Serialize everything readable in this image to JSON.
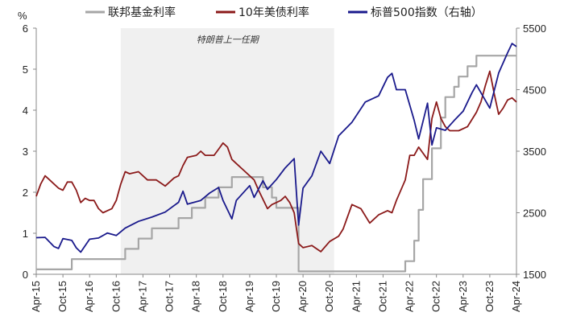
{
  "chart_data": {
    "type": "line",
    "legend_position": "top",
    "grid": false,
    "y_left_unit": "%",
    "y_left_range": [
      0,
      6
    ],
    "y_left_ticks": [
      0,
      1,
      2,
      3,
      4,
      5,
      6
    ],
    "y_right_range": [
      1500,
      5500
    ],
    "y_right_ticks": [
      1500,
      2500,
      3500,
      4500,
      5500
    ],
    "x_range": [
      "2015-04",
      "2024-04"
    ],
    "x_ticks": [
      "Apr-15",
      "Oct-15",
      "Apr-16",
      "Oct-16",
      "Apr-17",
      "Oct-17",
      "Apr-18",
      "Oct-18",
      "Apr-19",
      "Oct-19",
      "Apr-20",
      "Oct-20",
      "Apr-21",
      "Oct-21",
      "Apr-22",
      "Oct-22",
      "Apr-23",
      "Oct-23",
      "Apr-24"
    ],
    "shaded_period": {
      "label": "特朗普上一任期",
      "start": "2016-11",
      "end": "2020-11",
      "color": "#f0f0f0"
    },
    "series": [
      {
        "name": "联邦基金利率",
        "axis": "left",
        "color": "#a6a6a6",
        "points": [
          [
            "2015-04",
            0.12
          ],
          [
            "2015-12",
            0.12
          ],
          [
            "2015-12",
            0.37
          ],
          [
            "2016-12",
            0.37
          ],
          [
            "2016-12",
            0.62
          ],
          [
            "2017-03",
            0.62
          ],
          [
            "2017-03",
            0.87
          ],
          [
            "2017-06",
            0.87
          ],
          [
            "2017-06",
            1.12
          ],
          [
            "2017-12",
            1.12
          ],
          [
            "2017-12",
            1.37
          ],
          [
            "2018-03",
            1.37
          ],
          [
            "2018-03",
            1.62
          ],
          [
            "2018-06",
            1.62
          ],
          [
            "2018-06",
            1.87
          ],
          [
            "2018-09",
            1.87
          ],
          [
            "2018-09",
            2.12
          ],
          [
            "2018-12",
            2.12
          ],
          [
            "2018-12",
            2.37
          ],
          [
            "2019-07",
            2.37
          ],
          [
            "2019-07",
            2.12
          ],
          [
            "2019-09",
            2.12
          ],
          [
            "2019-09",
            1.87
          ],
          [
            "2019-10",
            1.87
          ],
          [
            "2019-10",
            1.62
          ],
          [
            "2020-03",
            1.62
          ],
          [
            "2020-03",
            0.07
          ],
          [
            "2022-03",
            0.07
          ],
          [
            "2022-03",
            0.32
          ],
          [
            "2022-05",
            0.32
          ],
          [
            "2022-05",
            0.82
          ],
          [
            "2022-06",
            0.82
          ],
          [
            "2022-06",
            1.57
          ],
          [
            "2022-07",
            1.57
          ],
          [
            "2022-07",
            2.32
          ],
          [
            "2022-09",
            2.32
          ],
          [
            "2022-09",
            3.07
          ],
          [
            "2022-11",
            3.07
          ],
          [
            "2022-11",
            3.82
          ],
          [
            "2022-12",
            3.82
          ],
          [
            "2022-12",
            4.32
          ],
          [
            "2023-02",
            4.32
          ],
          [
            "2023-02",
            4.57
          ],
          [
            "2023-03",
            4.57
          ],
          [
            "2023-03",
            4.82
          ],
          [
            "2023-05",
            4.82
          ],
          [
            "2023-05",
            5.07
          ],
          [
            "2023-07",
            5.07
          ],
          [
            "2023-07",
            5.33
          ],
          [
            "2024-04",
            5.33
          ]
        ]
      },
      {
        "name": "10年美债利率",
        "axis": "left",
        "color": "#8b1a1a",
        "points": [
          [
            "2015-04",
            1.9
          ],
          [
            "2015-05",
            2.2
          ],
          [
            "2015-06",
            2.4
          ],
          [
            "2015-07",
            2.3
          ],
          [
            "2015-08",
            2.2
          ],
          [
            "2015-09",
            2.1
          ],
          [
            "2015-10",
            2.05
          ],
          [
            "2015-11",
            2.25
          ],
          [
            "2015-12",
            2.25
          ],
          [
            "2016-01",
            2.05
          ],
          [
            "2016-02",
            1.75
          ],
          [
            "2016-03",
            1.85
          ],
          [
            "2016-04",
            1.8
          ],
          [
            "2016-05",
            1.8
          ],
          [
            "2016-06",
            1.6
          ],
          [
            "2016-07",
            1.5
          ],
          [
            "2016-08",
            1.55
          ],
          [
            "2016-09",
            1.6
          ],
          [
            "2016-10",
            1.8
          ],
          [
            "2016-11",
            2.2
          ],
          [
            "2016-12",
            2.5
          ],
          [
            "2017-01",
            2.45
          ],
          [
            "2017-03",
            2.5
          ],
          [
            "2017-05",
            2.3
          ],
          [
            "2017-07",
            2.3
          ],
          [
            "2017-09",
            2.15
          ],
          [
            "2017-11",
            2.35
          ],
          [
            "2017-12",
            2.4
          ],
          [
            "2018-01",
            2.65
          ],
          [
            "2018-02",
            2.85
          ],
          [
            "2018-04",
            2.9
          ],
          [
            "2018-05",
            3.0
          ],
          [
            "2018-06",
            2.9
          ],
          [
            "2018-08",
            2.9
          ],
          [
            "2018-09",
            3.05
          ],
          [
            "2018-10",
            3.2
          ],
          [
            "2018-11",
            3.1
          ],
          [
            "2018-12",
            2.8
          ],
          [
            "2019-01",
            2.7
          ],
          [
            "2019-03",
            2.5
          ],
          [
            "2019-05",
            2.3
          ],
          [
            "2019-06",
            2.05
          ],
          [
            "2019-08",
            1.6
          ],
          [
            "2019-09",
            1.7
          ],
          [
            "2019-10",
            1.75
          ],
          [
            "2019-11",
            1.8
          ],
          [
            "2019-12",
            1.9
          ],
          [
            "2020-01",
            1.75
          ],
          [
            "2020-02",
            1.5
          ],
          [
            "2020-03",
            0.75
          ],
          [
            "2020-04",
            0.65
          ],
          [
            "2020-06",
            0.7
          ],
          [
            "2020-08",
            0.55
          ],
          [
            "2020-10",
            0.8
          ],
          [
            "2020-12",
            0.93
          ],
          [
            "2021-01",
            1.1
          ],
          [
            "2021-02",
            1.4
          ],
          [
            "2021-03",
            1.7
          ],
          [
            "2021-05",
            1.6
          ],
          [
            "2021-07",
            1.25
          ],
          [
            "2021-09",
            1.45
          ],
          [
            "2021-11",
            1.55
          ],
          [
            "2021-12",
            1.5
          ],
          [
            "2022-01",
            1.8
          ],
          [
            "2022-03",
            2.3
          ],
          [
            "2022-04",
            2.9
          ],
          [
            "2022-05",
            2.9
          ],
          [
            "2022-06",
            3.1
          ],
          [
            "2022-08",
            2.8
          ],
          [
            "2022-09",
            3.8
          ],
          [
            "2022-10",
            4.2
          ],
          [
            "2022-11",
            3.8
          ],
          [
            "2022-12",
            3.6
          ],
          [
            "2023-01",
            3.5
          ],
          [
            "2023-03",
            3.5
          ],
          [
            "2023-05",
            3.6
          ],
          [
            "2023-07",
            3.95
          ],
          [
            "2023-08",
            4.2
          ],
          [
            "2023-09",
            4.6
          ],
          [
            "2023-10",
            4.95
          ],
          [
            "2023-11",
            4.4
          ],
          [
            "2023-12",
            3.9
          ],
          [
            "2024-01",
            4.05
          ],
          [
            "2024-02",
            4.25
          ],
          [
            "2024-03",
            4.3
          ],
          [
            "2024-04",
            4.2
          ]
        ]
      },
      {
        "name": "标普500指数（右轴）",
        "axis": "right",
        "color": "#1a1a8c",
        "points": [
          [
            "2015-04",
            2095
          ],
          [
            "2015-06",
            2100
          ],
          [
            "2015-08",
            1950
          ],
          [
            "2015-09",
            1920
          ],
          [
            "2015-10",
            2080
          ],
          [
            "2015-12",
            2050
          ],
          [
            "2016-01",
            1930
          ],
          [
            "2016-02",
            1860
          ],
          [
            "2016-04",
            2070
          ],
          [
            "2016-06",
            2090
          ],
          [
            "2016-08",
            2170
          ],
          [
            "2016-10",
            2130
          ],
          [
            "2016-12",
            2250
          ],
          [
            "2017-03",
            2360
          ],
          [
            "2017-06",
            2430
          ],
          [
            "2017-09",
            2510
          ],
          [
            "2017-12",
            2670
          ],
          [
            "2018-01",
            2850
          ],
          [
            "2018-02",
            2640
          ],
          [
            "2018-05",
            2700
          ],
          [
            "2018-07",
            2820
          ],
          [
            "2018-09",
            2910
          ],
          [
            "2018-10",
            2700
          ],
          [
            "2018-12",
            2400
          ],
          [
            "2019-01",
            2700
          ],
          [
            "2019-04",
            2940
          ],
          [
            "2019-05",
            2750
          ],
          [
            "2019-07",
            3020
          ],
          [
            "2019-08",
            2880
          ],
          [
            "2019-10",
            3040
          ],
          [
            "2019-12",
            3230
          ],
          [
            "2020-02",
            3380
          ],
          [
            "2020-03",
            2300
          ],
          [
            "2020-04",
            2900
          ],
          [
            "2020-06",
            3100
          ],
          [
            "2020-08",
            3500
          ],
          [
            "2020-10",
            3300
          ],
          [
            "2020-12",
            3750
          ],
          [
            "2021-03",
            3970
          ],
          [
            "2021-06",
            4300
          ],
          [
            "2021-09",
            4400
          ],
          [
            "2021-11",
            4700
          ],
          [
            "2021-12",
            4766
          ],
          [
            "2022-01",
            4500
          ],
          [
            "2022-03",
            4500
          ],
          [
            "2022-05",
            4000
          ],
          [
            "2022-06",
            3700
          ],
          [
            "2022-08",
            4280
          ],
          [
            "2022-09",
            3600
          ],
          [
            "2022-10",
            3880
          ],
          [
            "2022-12",
            3840
          ],
          [
            "2023-02",
            4000
          ],
          [
            "2023-04",
            4150
          ],
          [
            "2023-06",
            4450
          ],
          [
            "2023-07",
            4580
          ],
          [
            "2023-10",
            4200
          ],
          [
            "2023-12",
            4770
          ],
          [
            "2024-02",
            5100
          ],
          [
            "2024-03",
            5250
          ],
          [
            "2024-04",
            5200
          ]
        ]
      }
    ]
  }
}
